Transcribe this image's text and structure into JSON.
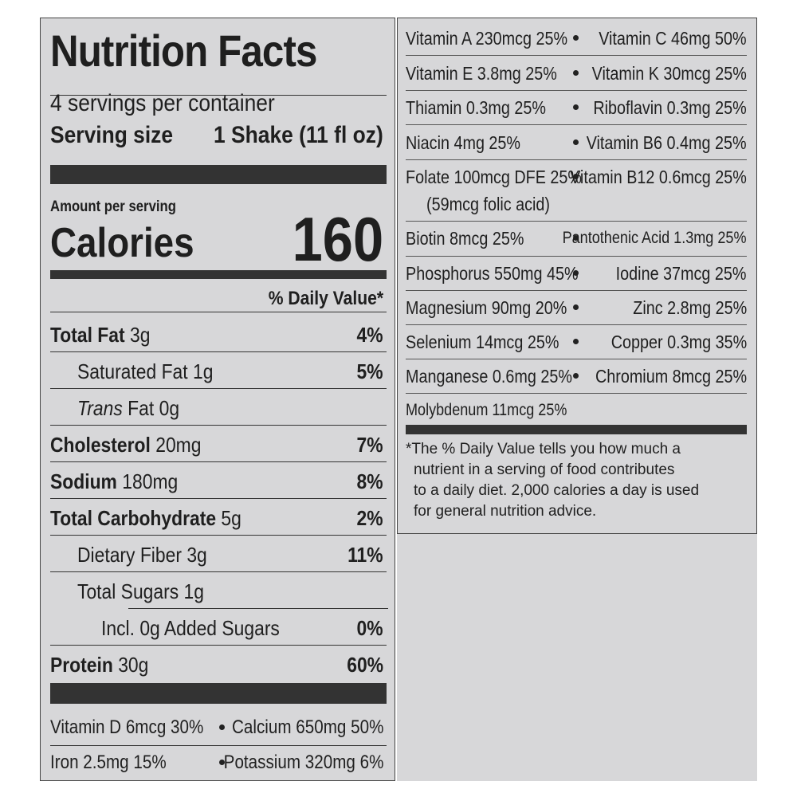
{
  "title": "Nutrition Facts",
  "servings_per_container": "4 servings per container",
  "serving_size": {
    "label": "Serving size",
    "value": "1 Shake (11 fl oz)"
  },
  "amount_per_serving": "Amount per serving",
  "calories": {
    "label": "Calories",
    "value": "160"
  },
  "daily_value_header": "% Daily Value*",
  "nutrients": [
    {
      "name": "Total Fat",
      "amount": "3g",
      "dv": "4%"
    },
    {
      "name": "Saturated Fat",
      "amount": "1g",
      "dv": "5%"
    },
    {
      "name": "Trans",
      "name2": "Fat",
      "amount": "0g",
      "dv": ""
    },
    {
      "name": "Cholesterol",
      "amount": "20mg",
      "dv": "7%"
    },
    {
      "name": "Sodium",
      "amount": "180mg",
      "dv": "8%"
    },
    {
      "name": "Total Carbohydrate",
      "amount": "5g",
      "dv": "2%"
    },
    {
      "name": "Dietary Fiber",
      "amount": "3g",
      "dv": "11%"
    },
    {
      "name": "Total Sugars",
      "amount": "1g",
      "dv": ""
    },
    {
      "name": "Incl. 0g Added Sugars",
      "amount": "",
      "dv": "0%"
    },
    {
      "name": "Protein",
      "amount": "30g",
      "dv": "60%"
    }
  ],
  "left_vitamins": [
    {
      "left": "Vitamin D 6mcg 30%",
      "right": "Calcium 650mg 50%"
    },
    {
      "left": "Iron 2.5mg 15%",
      "right": "Potassium 320mg 6%"
    }
  ],
  "right_vitamins": [
    {
      "left": "Vitamin A 230mcg 25%",
      "right": "Vitamin C 46mg 50%"
    },
    {
      "left": "Vitamin E 3.8mg 25%",
      "right": "Vitamin K 30mcg 25%"
    },
    {
      "left": "Thiamin 0.3mg 25%",
      "right": "Riboflavin 0.3mg 25%"
    },
    {
      "left": "Niacin 4mg 25%",
      "right": "Vitamin B6 0.4mg 25%"
    },
    {
      "left": "Folate 100mcg DFE 25%",
      "left2": "(59mcg folic acid)",
      "right": "Vitamin B12 0.6mcg 25%"
    },
    {
      "left": "Biotin 8mcg 25%",
      "right": "Pantothenic Acid 1.3mg 25%"
    },
    {
      "left": "Phosphorus 550mg 45%",
      "right": "Iodine 37mcg 25%"
    },
    {
      "left": "Magnesium 90mg 20%",
      "right": "Zinc 2.8mg 25%"
    },
    {
      "left": "Selenium 14mcg 25%",
      "right": "Copper 0.3mg 35%"
    },
    {
      "left": "Manganese 0.6mg 25%",
      "right": "Chromium 8mcg 25%"
    },
    {
      "left": "Molybdenum 11mcg 25%",
      "right": ""
    }
  ],
  "footnote": [
    "*The % Daily Value tells you how much a",
    "nutrient in a serving of food contributes",
    "to a daily diet. 2,000 calories a day is used",
    "for general nutrition advice."
  ]
}
